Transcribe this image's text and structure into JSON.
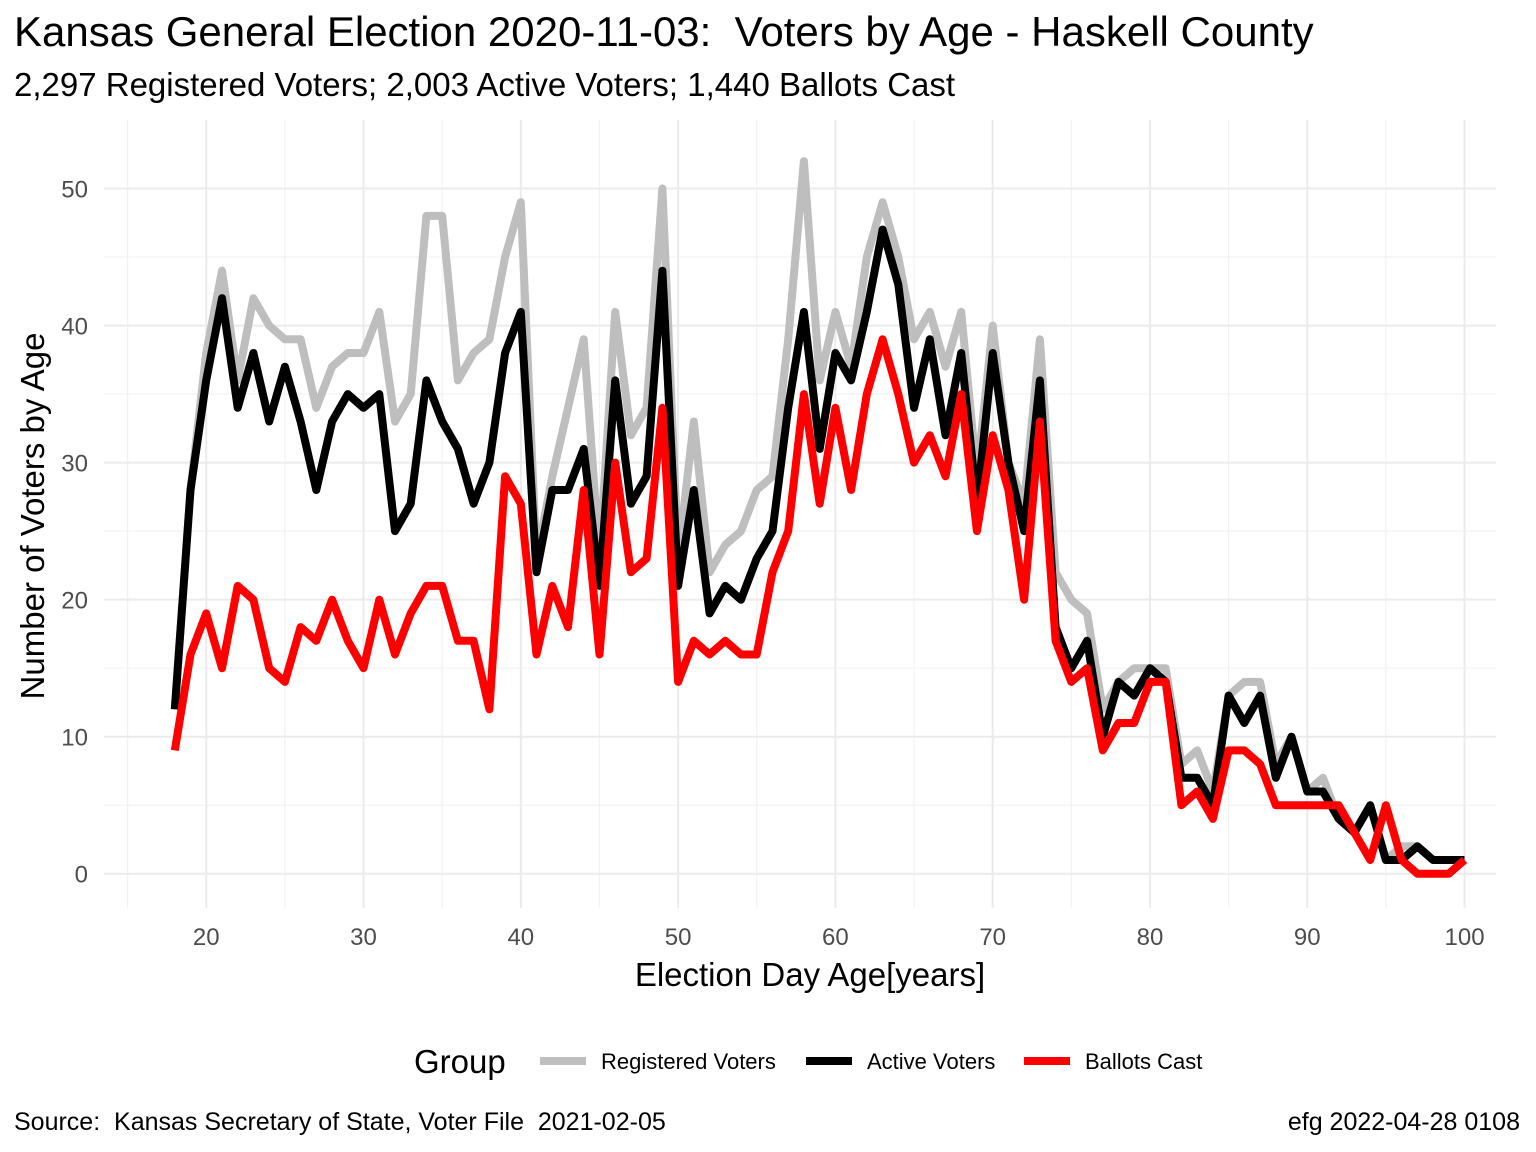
{
  "header": {
    "title": "Kansas General Election 2020-11-03:  Voters by Age - Haskell County",
    "subtitle": "2,297 Registered Voters; 2,003 Active Voters; 1,440 Ballots Cast"
  },
  "footer": {
    "source": "Source:  Kansas Secretary of State, Voter File  2021-02-05",
    "credit": "efg 2022-04-28 0108"
  },
  "chart_data": {
    "type": "line",
    "xlabel": "Election Day Age[years]",
    "ylabel": "Number of Voters by Age",
    "xlim": [
      13.5,
      102
    ],
    "ylim": [
      -2.5,
      55
    ],
    "x_ticks": [
      "20",
      "30",
      "40",
      "50",
      "60",
      "70",
      "80",
      "90",
      "100"
    ],
    "y_ticks": [
      "0",
      "10",
      "20",
      "30",
      "40",
      "50"
    ],
    "grid": true,
    "legend": {
      "title": "Group",
      "position": "bottom"
    },
    "x": [
      18,
      19,
      20,
      21,
      22,
      23,
      24,
      25,
      26,
      27,
      28,
      29,
      30,
      31,
      32,
      33,
      34,
      35,
      36,
      37,
      38,
      39,
      40,
      41,
      42,
      43,
      44,
      45,
      46,
      47,
      48,
      49,
      50,
      51,
      52,
      53,
      54,
      55,
      56,
      57,
      58,
      59,
      60,
      61,
      62,
      63,
      64,
      65,
      66,
      67,
      68,
      69,
      70,
      71,
      72,
      73,
      74,
      75,
      76,
      77,
      78,
      79,
      80,
      81,
      82,
      83,
      84,
      85,
      86,
      87,
      88,
      89,
      90,
      91,
      92,
      93,
      94,
      95,
      96,
      97,
      98,
      99,
      100
    ],
    "series": [
      {
        "name": "Registered Voters",
        "color": "#bebebe",
        "values": [
          12,
          28,
          38,
          44,
          36,
          42,
          40,
          39,
          39,
          34,
          37,
          38,
          38,
          41,
          33,
          35,
          48,
          48,
          36,
          38,
          39,
          45,
          49,
          23,
          29,
          34,
          39,
          23,
          41,
          32,
          34,
          50,
          23,
          33,
          22,
          24,
          25,
          28,
          29,
          39,
          52,
          36,
          41,
          37,
          45,
          49,
          45,
          39,
          41,
          37,
          41,
          29,
          40,
          30,
          27,
          39,
          22,
          20,
          19,
          12,
          14,
          15,
          15,
          15,
          8,
          9,
          6,
          13,
          14,
          14,
          8,
          10,
          6,
          7,
          4,
          3,
          5,
          1,
          2,
          2,
          1,
          1,
          1
        ]
      },
      {
        "name": "Active Voters",
        "color": "#000000",
        "values": [
          12,
          28,
          36,
          42,
          34,
          38,
          33,
          37,
          33,
          28,
          33,
          35,
          34,
          35,
          25,
          27,
          36,
          33,
          31,
          27,
          30,
          38,
          41,
          22,
          28,
          28,
          31,
          21,
          36,
          27,
          29,
          44,
          21,
          28,
          19,
          21,
          20,
          23,
          25,
          34,
          41,
          31,
          38,
          36,
          41,
          47,
          43,
          34,
          39,
          32,
          38,
          27,
          38,
          30,
          25,
          36,
          18,
          15,
          17,
          10,
          14,
          13,
          15,
          14,
          7,
          7,
          5,
          13,
          11,
          13,
          7,
          10,
          6,
          6,
          4,
          3,
          5,
          1,
          1,
          2,
          1,
          1,
          1
        ]
      },
      {
        "name": "Ballots Cast",
        "color": "#ff0000",
        "values": [
          9,
          16,
          19,
          15,
          21,
          20,
          15,
          14,
          18,
          17,
          20,
          17,
          15,
          20,
          16,
          19,
          21,
          21,
          17,
          17,
          12,
          29,
          27,
          16,
          21,
          18,
          28,
          16,
          30,
          22,
          23,
          34,
          14,
          17,
          16,
          17,
          16,
          16,
          22,
          25,
          35,
          27,
          34,
          28,
          35,
          39,
          35,
          30,
          32,
          29,
          35,
          25,
          32,
          28,
          20,
          33,
          17,
          14,
          15,
          9,
          11,
          11,
          14,
          14,
          5,
          6,
          4,
          9,
          9,
          8,
          5,
          5,
          5,
          5,
          5,
          3,
          1,
          5,
          1,
          0,
          0,
          0,
          1
        ]
      }
    ]
  }
}
